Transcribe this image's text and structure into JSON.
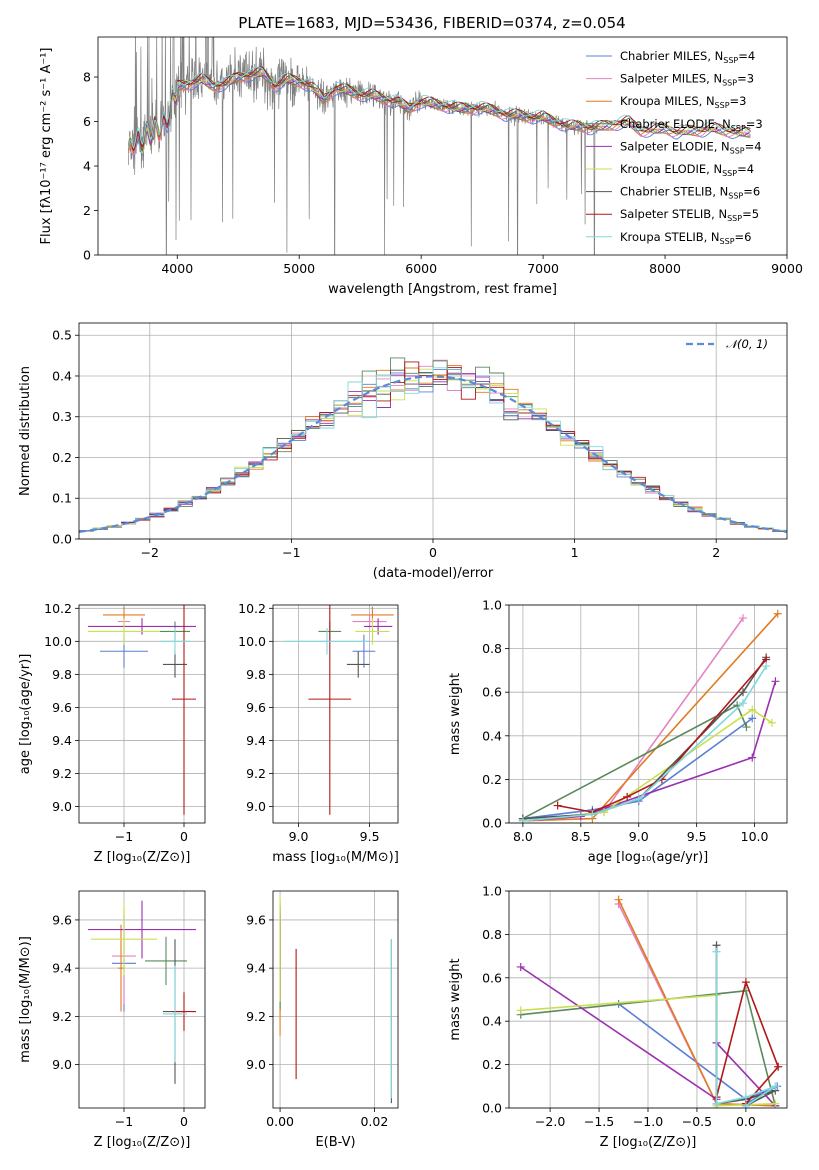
{
  "title": "PLATE=1683, MJD=53436, FIBERID=0374, z=0.054",
  "colors": {
    "blue": "#5b7fd6",
    "pink": "#e483c2",
    "orange": "#e07b20",
    "green": "#5a8a5e",
    "purple": "#9b30b0",
    "yellowgreen": "#c9e050",
    "darkgray": "#555555",
    "red": "#b01818",
    "cyan": "#80d8dc",
    "data": "#808080"
  },
  "legend": [
    {
      "pre": "Chabrier MILES, N",
      "sub": "SSP",
      "post": "=4",
      "color": "#5b7fd6"
    },
    {
      "pre": "Salpeter MILES, N",
      "sub": "SSP",
      "post": "=3",
      "color": "#e483c2"
    },
    {
      "pre": "Kroupa MILES, N",
      "sub": "SSP",
      "post": "=3",
      "color": "#e07b20"
    },
    {
      "pre": "Chabrier ELODIE, N",
      "sub": "SSP",
      "post": "=3",
      "color": "#5a8a5e"
    },
    {
      "pre": "Salpeter ELODIE, N",
      "sub": "SSP",
      "post": "=4",
      "color": "#9b30b0"
    },
    {
      "pre": "Kroupa ELODIE, N",
      "sub": "SSP",
      "post": "=4",
      "color": "#c9e050"
    },
    {
      "pre": "Chabrier STELIB, N",
      "sub": "SSP",
      "post": "=6",
      "color": "#555555"
    },
    {
      "pre": "Salpeter STELIB, N",
      "sub": "SSP",
      "post": "=5",
      "color": "#b01818"
    },
    {
      "pre": "Kroupa STELIB, N",
      "sub": "SSP",
      "post": "=6",
      "color": "#80d8dc"
    }
  ],
  "chart_data": [
    {
      "id": "spectrum",
      "type": "line",
      "xlabel": "wavelength [Angstrom, rest frame]",
      "ylabel": "Flux [fλ10⁻¹⁷ erg cm⁻² s⁻¹ A⁻¹]",
      "xlim": [
        3350,
        9000
      ],
      "ylim": [
        0,
        9.8
      ],
      "xticks": [
        4000,
        5000,
        6000,
        7000,
        8000,
        9000
      ],
      "yticks": [
        0,
        2,
        4,
        6,
        8
      ],
      "data_range": [
        3600,
        7450
      ],
      "model_range": [
        3600,
        8700
      ],
      "continuum": [
        [
          3600,
          4.6
        ],
        [
          3650,
          5.2
        ],
        [
          3700,
          5.0
        ],
        [
          3800,
          5.6
        ],
        [
          3900,
          5.9
        ],
        [
          3950,
          6.6
        ],
        [
          4000,
          7.6
        ],
        [
          4100,
          7.7
        ],
        [
          4200,
          7.9
        ],
        [
          4300,
          7.6
        ],
        [
          4400,
          7.7
        ],
        [
          4500,
          8.0
        ],
        [
          4600,
          8.1
        ],
        [
          4700,
          8.2
        ],
        [
          4800,
          7.6
        ],
        [
          4900,
          7.9
        ],
        [
          5000,
          7.8
        ],
        [
          5100,
          7.6
        ],
        [
          5200,
          7.0
        ],
        [
          5300,
          7.5
        ],
        [
          5400,
          7.4
        ],
        [
          5500,
          7.2
        ],
        [
          5600,
          7.2
        ],
        [
          5700,
          7.0
        ],
        [
          5800,
          6.9
        ],
        [
          5900,
          6.6
        ],
        [
          6000,
          6.9
        ],
        [
          6100,
          6.8
        ],
        [
          6200,
          6.7
        ],
        [
          6300,
          6.6
        ],
        [
          6400,
          6.6
        ],
        [
          6500,
          6.6
        ],
        [
          6600,
          6.5
        ],
        [
          6700,
          6.3
        ],
        [
          6800,
          6.3
        ],
        [
          6900,
          6.2
        ],
        [
          7000,
          6.2
        ],
        [
          7100,
          6.0
        ],
        [
          7200,
          5.8
        ],
        [
          7300,
          5.8
        ],
        [
          7400,
          5.7
        ],
        [
          7500,
          5.8
        ],
        [
          7600,
          5.9
        ],
        [
          7700,
          6.0
        ],
        [
          7800,
          5.6
        ],
        [
          7900,
          5.6
        ],
        [
          8000,
          5.7
        ],
        [
          8100,
          5.5
        ],
        [
          8200,
          5.6
        ],
        [
          8300,
          5.6
        ],
        [
          8400,
          5.7
        ],
        [
          8500,
          5.6
        ],
        [
          8600,
          5.5
        ],
        [
          8700,
          5.5
        ]
      ],
      "dips": [
        [
          3910,
          0
        ],
        [
          3930,
          2.4
        ],
        [
          5290,
          0
        ],
        [
          5700,
          0
        ],
        [
          6790,
          0
        ],
        [
          7420,
          0
        ]
      ]
    },
    {
      "id": "residual-histogram",
      "type": "bar",
      "xlabel": "(data-model)/error",
      "ylabel": "Normed distribution",
      "xlim": [
        -2.5,
        2.5
      ],
      "ylim": [
        0,
        0.53
      ],
      "xticks": [
        -2,
        -1,
        0,
        1,
        2
      ],
      "yticks": [
        0.0,
        0.1,
        0.2,
        0.3,
        0.4,
        0.5
      ],
      "bin_width": 0.1,
      "reference_label": "𝒩(0, 1)",
      "reference": {
        "mean": 0,
        "sigma": 1
      }
    },
    {
      "id": "age-vs-z",
      "type": "scatter",
      "xlabel": "Z [log₁₀(Z/Z⊙)]",
      "ylabel": "age  [log₁₀(age/yr)]",
      "xlim": [
        -1.75,
        0.35
      ],
      "ylim": [
        8.9,
        10.22
      ],
      "xticks": [
        -1,
        0
      ],
      "yticks": [
        9.0,
        9.2,
        9.4,
        9.6,
        9.8,
        10.0,
        10.2
      ],
      "points": [
        {
          "x": -1.0,
          "y": 9.94,
          "xerr": 0.4,
          "yerr": 0.1,
          "color": "#5b7fd6"
        },
        {
          "x": -1.0,
          "y": 10.12,
          "xerr": 0.1,
          "yerr": 0.04,
          "color": "#e483c2"
        },
        {
          "x": -1.0,
          "y": 10.16,
          "xerr": 0.35,
          "yerr": 0.05,
          "color": "#e07b20"
        },
        {
          "x": -0.15,
          "y": 10.06,
          "xerr": 0.25,
          "yerr": 0.06,
          "color": "#5a8a5e"
        },
        {
          "x": -0.7,
          "y": 10.09,
          "xerr": 0.9,
          "yerr": 0.05,
          "color": "#9b30b0"
        },
        {
          "x": -1.0,
          "y": 10.06,
          "xerr": 0.6,
          "yerr": 0.08,
          "color": "#c9e050"
        },
        {
          "x": -0.15,
          "y": 9.86,
          "xerr": 0.2,
          "yerr": 0.08,
          "color": "#555555"
        },
        {
          "x": 0.0,
          "y": 9.65,
          "xerr": 0.2,
          "yerr": 0.7,
          "color": "#b01818"
        },
        {
          "x": -0.15,
          "y": 10.0,
          "xerr": 0.25,
          "yerr": 0.08,
          "color": "#80d8dc"
        }
      ]
    },
    {
      "id": "age-vs-mass",
      "type": "scatter",
      "xlabel": "mass [log₁₀(M/M⊙)]",
      "ylabel": "",
      "xlim": [
        8.82,
        9.7
      ],
      "ylim": [
        8.9,
        10.22
      ],
      "xticks": [
        9.0,
        9.5
      ],
      "yticks": [
        9.0,
        9.2,
        9.4,
        9.6,
        9.8,
        10.0,
        10.2
      ],
      "points": [
        {
          "x": 9.46,
          "y": 9.94,
          "xerr": 0.08,
          "yerr": 0.1,
          "color": "#5b7fd6"
        },
        {
          "x": 9.5,
          "y": 10.12,
          "xerr": 0.12,
          "yerr": 0.04,
          "color": "#e483c2"
        },
        {
          "x": 9.52,
          "y": 10.16,
          "xerr": 0.15,
          "yerr": 0.05,
          "color": "#e07b20"
        },
        {
          "x": 9.22,
          "y": 10.06,
          "xerr": 0.08,
          "yerr": 0.06,
          "color": "#5a8a5e"
        },
        {
          "x": 9.56,
          "y": 10.09,
          "xerr": 0.1,
          "yerr": 0.05,
          "color": "#9b30b0"
        },
        {
          "x": 9.52,
          "y": 10.06,
          "xerr": 0.12,
          "yerr": 0.08,
          "color": "#c9e050"
        },
        {
          "x": 9.42,
          "y": 9.86,
          "xerr": 0.08,
          "yerr": 0.08,
          "color": "#555555"
        },
        {
          "x": 9.22,
          "y": 9.65,
          "xerr": 0.15,
          "yerr": 0.7,
          "color": "#b01818"
        },
        {
          "x": 9.2,
          "y": 10.0,
          "xerr": 0.3,
          "yerr": 0.08,
          "color": "#80d8dc"
        }
      ]
    },
    {
      "id": "mass-weight-vs-age",
      "type": "line",
      "xlabel": "age  [log₁₀(age/yr)]",
      "ylabel": "mass weight",
      "xlim": [
        7.88,
        10.28
      ],
      "ylim": [
        0,
        1.0
      ],
      "xticks": [
        8.0,
        8.5,
        9.0,
        9.5,
        10.0
      ],
      "yticks": [
        0.0,
        0.2,
        0.4,
        0.6,
        0.8,
        1.0
      ],
      "series": [
        {
          "color": "#5b7fd6",
          "points": [
            [
              8.0,
              0.02
            ],
            [
              8.6,
              0.06
            ],
            [
              9.0,
              0.1
            ],
            [
              9.98,
              0.48
            ]
          ]
        },
        {
          "color": "#e483c2",
          "points": [
            [
              8.0,
              0.01
            ],
            [
              8.7,
              0.05
            ],
            [
              9.9,
              0.94
            ]
          ]
        },
        {
          "color": "#e07b20",
          "points": [
            [
              8.0,
              0.01
            ],
            [
              8.6,
              0.02
            ],
            [
              10.2,
              0.96
            ]
          ]
        },
        {
          "color": "#5a8a5e",
          "points": [
            [
              8.0,
              0.02
            ],
            [
              9.85,
              0.54
            ],
            [
              9.93,
              0.44
            ]
          ]
        },
        {
          "color": "#9b30b0",
          "points": [
            [
              8.0,
              0.01
            ],
            [
              8.5,
              0.03
            ],
            [
              9.98,
              0.3
            ],
            [
              10.18,
              0.65
            ]
          ]
        },
        {
          "color": "#c9e050",
          "points": [
            [
              8.0,
              0.01
            ],
            [
              8.7,
              0.05
            ],
            [
              9.98,
              0.52
            ],
            [
              10.15,
              0.46
            ]
          ]
        },
        {
          "color": "#555555",
          "points": [
            [
              8.0,
              0.02
            ],
            [
              8.6,
              0.04
            ],
            [
              9.0,
              0.11
            ],
            [
              9.9,
              0.6
            ],
            [
              10.1,
              0.76
            ]
          ]
        },
        {
          "color": "#b01818",
          "points": [
            [
              8.3,
              0.08
            ],
            [
              8.6,
              0.05
            ],
            [
              8.9,
              0.12
            ],
            [
              9.2,
              0.2
            ],
            [
              10.1,
              0.75
            ]
          ]
        },
        {
          "color": "#80d8dc",
          "points": [
            [
              8.0,
              0.01
            ],
            [
              8.6,
              0.04
            ],
            [
              9.0,
              0.11
            ],
            [
              9.9,
              0.55
            ],
            [
              10.1,
              0.72
            ]
          ]
        }
      ]
    },
    {
      "id": "mass-vs-z",
      "type": "scatter",
      "xlabel": "Z [log₁₀(Z/Z⊙)]",
      "ylabel": "mass [log₁₀(M/M⊙)]",
      "xlim": [
        -1.75,
        0.35
      ],
      "ylim": [
        8.82,
        9.72
      ],
      "xticks": [
        -1,
        0
      ],
      "yticks": [
        9.0,
        9.2,
        9.4,
        9.6
      ],
      "points": [
        {
          "x": -1.0,
          "y": 9.42,
          "xerr": 0.2,
          "yerr": 0.2,
          "color": "#5b7fd6"
        },
        {
          "x": -1.0,
          "y": 9.45,
          "xerr": 0.2,
          "yerr": 0.2,
          "color": "#e483c2"
        },
        {
          "x": -1.05,
          "y": 9.4,
          "xerr": 0.05,
          "yerr": 0.18,
          "color": "#e07b20"
        },
        {
          "x": -0.3,
          "y": 9.43,
          "xerr": 0.35,
          "yerr": 0.1,
          "color": "#5a8a5e"
        },
        {
          "x": -0.7,
          "y": 9.56,
          "xerr": 0.9,
          "yerr": 0.12,
          "color": "#9b30b0"
        },
        {
          "x": -1.0,
          "y": 9.52,
          "xerr": 0.55,
          "yerr": 0.15,
          "color": "#c9e050"
        },
        {
          "x": -0.15,
          "y": 9.22,
          "xerr": 0.2,
          "yerr": 0.3,
          "color": "#555555"
        },
        {
          "x": 0.0,
          "y": 9.22,
          "xerr": 0.2,
          "yerr": 0.08,
          "color": "#b01818"
        },
        {
          "x": -0.15,
          "y": 9.21,
          "xerr": 0.2,
          "yerr": 0.2,
          "color": "#80d8dc"
        }
      ]
    },
    {
      "id": "mass-vs-ebv",
      "type": "scatter",
      "xlabel": "E(B-V)",
      "ylabel": "",
      "xlim": [
        -0.0015,
        0.025
      ],
      "ylim": [
        8.82,
        9.72
      ],
      "xticks": [
        0.0,
        0.02
      ],
      "yticks": [
        9.0,
        9.2,
        9.4,
        9.6
      ],
      "points": [
        {
          "x": 0.0,
          "y": 9.42,
          "xerr": 0,
          "yerr": 0.2,
          "color": "#5b7fd6"
        },
        {
          "x": 0.0,
          "y": 9.45,
          "xerr": 0,
          "yerr": 0.2,
          "color": "#e483c2"
        },
        {
          "x": 0.0,
          "y": 9.4,
          "xerr": 0,
          "yerr": 0.28,
          "color": "#e07b20"
        },
        {
          "x": 0.0,
          "y": 9.43,
          "xerr": 0,
          "yerr": 0.2,
          "color": "#5a8a5e"
        },
        {
          "x": 0.0,
          "y": 9.46,
          "xerr": 0,
          "yerr": 0.2,
          "color": "#9b30b0"
        },
        {
          "x": 0.0,
          "y": 9.48,
          "xerr": 0,
          "yerr": 0.22,
          "color": "#c9e050"
        },
        {
          "x": 0.0236,
          "y": 9.18,
          "xerr": 0,
          "yerr": 0.34,
          "color": "#555555"
        },
        {
          "x": 0.0034,
          "y": 9.21,
          "xerr": 0,
          "yerr": 0.27,
          "color": "#b01818"
        },
        {
          "x": 0.0236,
          "y": 9.19,
          "xerr": 0,
          "yerr": 0.33,
          "color": "#80d8dc"
        }
      ]
    },
    {
      "id": "mass-weight-vs-z",
      "type": "line",
      "xlabel": "Z [log₁₀(Z/Z⊙)]",
      "ylabel": "mass weight",
      "xlim": [
        -2.42,
        0.42
      ],
      "ylim": [
        0,
        1.0
      ],
      "xticks": [
        -2.0,
        -1.5,
        -1.0,
        -0.5,
        0.0
      ],
      "yticks": [
        0.0,
        0.2,
        0.4,
        0.6,
        0.8,
        1.0
      ],
      "series": [
        {
          "color": "#5b7fd6",
          "points": [
            [
              -1.3,
              0.48
            ],
            [
              0.0,
              0.04
            ],
            [
              0.32,
              0.1
            ],
            [
              0.0,
              0.02
            ]
          ]
        },
        {
          "color": "#e483c2",
          "points": [
            [
              -1.3,
              0.94
            ],
            [
              -0.3,
              0.02
            ],
            [
              0.3,
              0.01
            ]
          ]
        },
        {
          "color": "#e07b20",
          "points": [
            [
              -1.3,
              0.96
            ],
            [
              -0.3,
              0.02
            ],
            [
              0.3,
              0.01
            ]
          ]
        },
        {
          "color": "#5a8a5e",
          "points": [
            [
              -2.3,
              0.43
            ],
            [
              0.0,
              0.54
            ],
            [
              0.3,
              0.01
            ]
          ]
        },
        {
          "color": "#9b30b0",
          "points": [
            [
              -2.3,
              0.65
            ],
            [
              -0.3,
              0.04
            ],
            [
              -0.3,
              0.3
            ],
            [
              0.3,
              0.01
            ]
          ]
        },
        {
          "color": "#c9e050",
          "points": [
            [
              -2.3,
              0.45
            ],
            [
              -0.3,
              0.52
            ],
            [
              -0.3,
              0.01
            ],
            [
              0.3,
              0.02
            ]
          ]
        },
        {
          "color": "#555555",
          "points": [
            [
              -0.3,
              0.75
            ],
            [
              -0.3,
              0.02
            ],
            [
              0.0,
              0.04
            ],
            [
              0.3,
              0.08
            ],
            [
              0.0,
              0.01
            ]
          ]
        },
        {
          "color": "#b01818",
          "points": [
            [
              -0.3,
              0.05
            ],
            [
              0.0,
              0.58
            ],
            [
              0.33,
              0.19
            ],
            [
              0.0,
              0.02
            ]
          ]
        },
        {
          "color": "#80d8dc",
          "points": [
            [
              -0.3,
              0.72
            ],
            [
              -0.3,
              0.02
            ],
            [
              0.0,
              0.05
            ],
            [
              0.3,
              0.1
            ],
            [
              0.0,
              0.01
            ]
          ]
        }
      ]
    }
  ]
}
